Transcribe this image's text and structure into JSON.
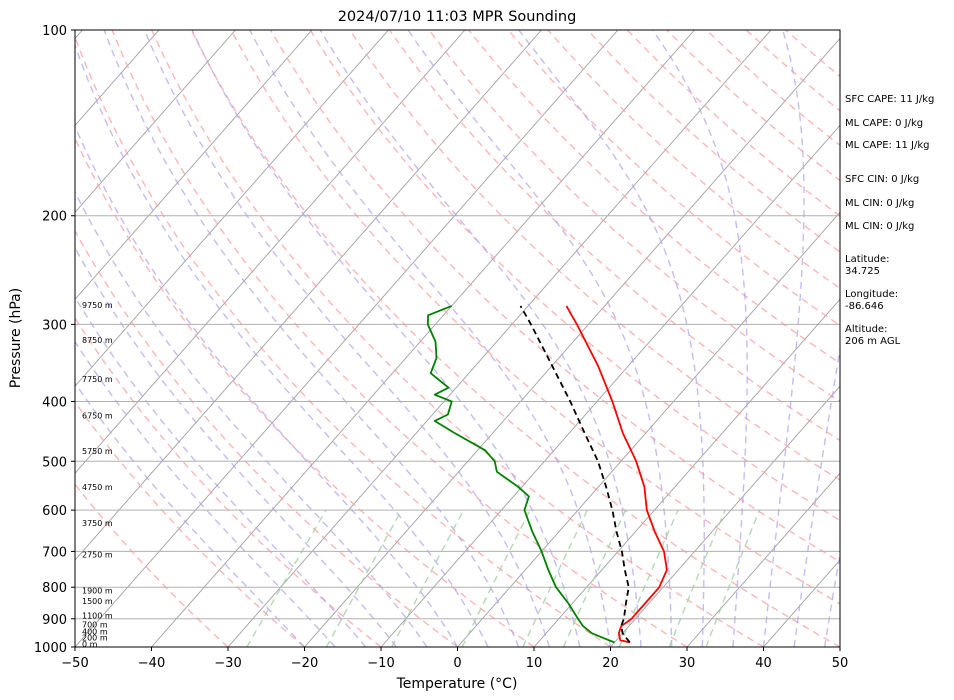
{
  "chart_data": {
    "type": "line",
    "title": "2024/07/10 11:03 MPR Sounding",
    "xlabel": "Temperature (°C)",
    "ylabel": "Pressure (hPa)",
    "xlim": [
      -50,
      50
    ],
    "ylim": [
      1000,
      100
    ],
    "y_scale": "log",
    "skew": "skew-T",
    "grid": true,
    "x_ticks": [
      "−50",
      "−40",
      "−30",
      "−20",
      "−10",
      "0",
      "10",
      "20",
      "30",
      "40",
      "50"
    ],
    "y_ticks": [
      "100",
      "200",
      "300",
      "400",
      "500",
      "600",
      "700",
      "800",
      "900",
      "1000"
    ],
    "height_labels": [
      "9750 m",
      "8750 m",
      "7750 m",
      "6750 m",
      "5750 m",
      "4750 m",
      "3750 m",
      "2750 m",
      "1900 m",
      "1500 m",
      "1100 m",
      "700 m",
      "400 m",
      "200 m",
      "0 m"
    ],
    "series": [
      {
        "color": "#ff0000",
        "style": "solid",
        "points": [
          [
            983,
            22
          ],
          [
            975,
            20.5
          ],
          [
            950,
            19.5
          ],
          [
            925,
            19
          ],
          [
            900,
            19.5
          ],
          [
            850,
            19.5
          ],
          [
            800,
            19.5
          ],
          [
            750,
            18.5
          ],
          [
            700,
            16
          ],
          [
            650,
            12.5
          ],
          [
            600,
            9
          ],
          [
            550,
            6
          ],
          [
            500,
            2
          ],
          [
            450,
            -3
          ],
          [
            400,
            -8
          ],
          [
            350,
            -14
          ],
          [
            300,
            -21.5
          ],
          [
            280,
            -25
          ]
        ]
      },
      {
        "color": "#008000",
        "style": "solid",
        "points": [
          [
            983,
            20
          ],
          [
            975,
            19
          ],
          [
            950,
            16
          ],
          [
            925,
            14
          ],
          [
            900,
            12.5
          ],
          [
            850,
            9.5
          ],
          [
            800,
            6
          ],
          [
            750,
            3
          ],
          [
            700,
            0
          ],
          [
            650,
            -3.5
          ],
          [
            600,
            -7
          ],
          [
            570,
            -8
          ],
          [
            550,
            -10.5
          ],
          [
            520,
            -15
          ],
          [
            500,
            -16.5
          ],
          [
            480,
            -19
          ],
          [
            450,
            -25
          ],
          [
            430,
            -29
          ],
          [
            420,
            -28
          ],
          [
            400,
            -29
          ],
          [
            390,
            -32
          ],
          [
            380,
            -31
          ],
          [
            360,
            -35
          ],
          [
            340,
            -36
          ],
          [
            320,
            -38
          ],
          [
            300,
            -41
          ],
          [
            290,
            -42
          ],
          [
            280,
            -40
          ]
        ]
      },
      {
        "color": "#000000",
        "style": "dashed",
        "points": [
          [
            983,
            22
          ],
          [
            950,
            20
          ],
          [
            925,
            19
          ],
          [
            900,
            18.5
          ],
          [
            850,
            17
          ],
          [
            800,
            15.5
          ],
          [
            750,
            13
          ],
          [
            700,
            10.5
          ],
          [
            650,
            7.5
          ],
          [
            600,
            4.5
          ],
          [
            550,
            1
          ],
          [
            500,
            -3
          ],
          [
            450,
            -8
          ],
          [
            400,
            -13.5
          ],
          [
            350,
            -20
          ],
          [
            300,
            -27.5
          ],
          [
            280,
            -31
          ]
        ]
      }
    ],
    "background_lines": [
      {
        "kind": "dry adiabats",
        "color": "#ff9c9c",
        "style": "dashed"
      },
      {
        "kind": "moist adiabats",
        "color": "#a8a0f0",
        "style": "dashed"
      },
      {
        "kind": "mixing ratio",
        "color": "#a0d0a0",
        "style": "dashed"
      },
      {
        "kind": "isotherms",
        "color": "#a0a0a0",
        "style": "solid"
      }
    ]
  },
  "indices": [
    {
      "label": "SFC CAPE: 11 J/kg"
    },
    {
      "label": "ML CAPE: 0 J/kg"
    },
    {
      "label": "ML CAPE: 11 J/kg"
    },
    {
      "label": "SFC CIN: 0 J/kg"
    },
    {
      "label": "ML CIN: 0 J/kg"
    },
    {
      "label": "ML CIN: 0 J/kg"
    }
  ],
  "location": {
    "latitude_label": "Latitude:",
    "latitude_value": "34.725",
    "longitude_label": "Longitude:",
    "longitude_value": "-86.646",
    "altitude_label": "Altitude:",
    "altitude_value": "206 m AGL"
  }
}
